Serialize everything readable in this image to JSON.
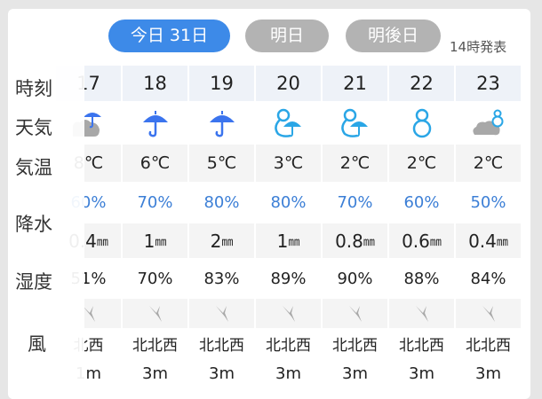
{
  "tabs": [
    {
      "label": "今日 31日",
      "active": true
    },
    {
      "label": "明日",
      "active": false
    },
    {
      "label": "明後日",
      "active": false
    }
  ],
  "issued": "14時発表",
  "row_labels": {
    "time": "時刻",
    "weather": "天気",
    "temp": "気温",
    "precip": "降水",
    "humidity": "湿度",
    "wind": "風"
  },
  "colors": {
    "accent": "#3d8ae8",
    "rain_icon": "#3b74ee",
    "snow_icon": "#2aa6e6",
    "pop_text": "#3c7fd6",
    "cloud": "#a8a8a8"
  },
  "hours": [
    {
      "time": "17",
      "weather": "cloud-rain-icon",
      "temp": "8℃",
      "pop": "60%",
      "amount": "0.4",
      "amount_unit": "㎜",
      "humidity": "51%",
      "wind_dir": "北西",
      "wind_speed": "1m"
    },
    {
      "time": "18",
      "weather": "umbrella-icon",
      "temp": "6℃",
      "pop": "70%",
      "amount": "1",
      "amount_unit": "㎜",
      "humidity": "70%",
      "wind_dir": "北北西",
      "wind_speed": "3m"
    },
    {
      "time": "19",
      "weather": "umbrella-icon",
      "temp": "5℃",
      "pop": "80%",
      "amount": "2",
      "amount_unit": "㎜",
      "humidity": "83%",
      "wind_dir": "北北西",
      "wind_speed": "3m"
    },
    {
      "time": "20",
      "weather": "snowman-umbrella-icon",
      "temp": "3℃",
      "pop": "80%",
      "amount": "1",
      "amount_unit": "㎜",
      "humidity": "89%",
      "wind_dir": "北北西",
      "wind_speed": "3m"
    },
    {
      "time": "21",
      "weather": "snowman-umbrella-icon",
      "temp": "2℃",
      "pop": "70%",
      "amount": "0.8",
      "amount_unit": "㎜",
      "humidity": "90%",
      "wind_dir": "北北西",
      "wind_speed": "3m"
    },
    {
      "time": "22",
      "weather": "snowman-icon",
      "temp": "2℃",
      "pop": "60%",
      "amount": "0.6",
      "amount_unit": "㎜",
      "humidity": "88%",
      "wind_dir": "北北西",
      "wind_speed": "3m"
    },
    {
      "time": "23",
      "weather": "cloud-snowman-icon",
      "temp": "2℃",
      "pop": "50%",
      "amount": "0.4",
      "amount_unit": "㎜",
      "humidity": "84%",
      "wind_dir": "北北西",
      "wind_speed": "3m"
    }
  ]
}
